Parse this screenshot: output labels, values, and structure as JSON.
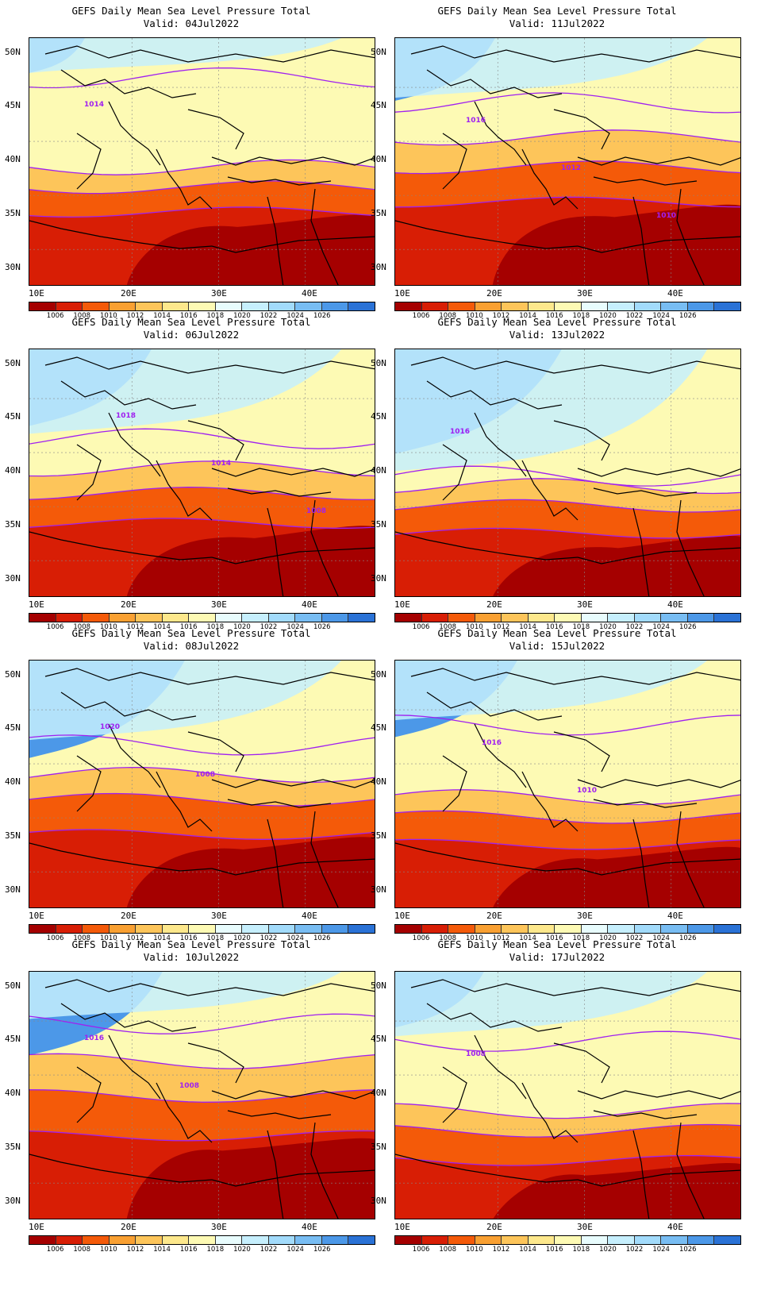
{
  "chart_data": [
    {
      "type": "contour-map",
      "title": "GEFS Daily Mean Sea Level Pressure Total",
      "subtitle": "Valid: 04Jul2022",
      "contour_labels": [
        "1014"
      ]
    },
    {
      "type": "contour-map",
      "title": "GEFS Daily Mean Sea Level Pressure Total",
      "subtitle": "Valid: 11Jul2022",
      "contour_labels": [
        "1016",
        "1012",
        "1010"
      ]
    },
    {
      "type": "contour-map",
      "title": "GEFS Daily Mean Sea Level Pressure Total",
      "subtitle": "Valid: 06Jul2022",
      "contour_labels": [
        "1018",
        "1014",
        "1008"
      ]
    },
    {
      "type": "contour-map",
      "title": "GEFS Daily Mean Sea Level Pressure Total",
      "subtitle": "Valid: 13Jul2022",
      "contour_labels": [
        "1016"
      ]
    },
    {
      "type": "contour-map",
      "title": "GEFS Daily Mean Sea Level Pressure Total",
      "subtitle": "Valid: 08Jul2022",
      "contour_labels": [
        "1020",
        "1008"
      ]
    },
    {
      "type": "contour-map",
      "title": "GEFS Daily Mean Sea Level Pressure Total",
      "subtitle": "Valid: 15Jul2022",
      "contour_labels": [
        "1016",
        "1010"
      ]
    },
    {
      "type": "contour-map",
      "title": "GEFS Daily Mean Sea Level Pressure Total",
      "subtitle": "Valid: 10Jul2022",
      "contour_labels": [
        "1016",
        "1008"
      ]
    },
    {
      "type": "contour-map",
      "title": "GEFS Daily Mean Sea Level Pressure Total",
      "subtitle": "Valid: 17Jul2022",
      "contour_labels": [
        "1008"
      ]
    }
  ],
  "axes": {
    "lat_labels": [
      "50N",
      "45N",
      "40N",
      "35N",
      "30N"
    ],
    "lon_labels": [
      "10E",
      "20E",
      "30E",
      "40E"
    ]
  },
  "colorbar": {
    "colors": [
      "#a50000",
      "#d81e05",
      "#f45a09",
      "#f9a032",
      "#fdc55a",
      "#fde88c",
      "#fdfab4",
      "#e8fcfd",
      "#c6effd",
      "#a2dbfb",
      "#78bdf3",
      "#4c98e8",
      "#2a72d6"
    ],
    "labels": [
      "1006",
      "1008",
      "1010",
      "1012",
      "1014",
      "1016",
      "1018",
      "1020",
      "1022",
      "1024",
      "1026"
    ]
  },
  "palette": {
    "high": "#4c98e8",
    "mid_high": "#c6effd",
    "neutral": "#fdfab4",
    "mid": "#fdc55a",
    "mid_low": "#f45a09",
    "low": "#d81e05",
    "lowest": "#a50000",
    "isobar": "#a020f0",
    "coast": "#000000"
  }
}
